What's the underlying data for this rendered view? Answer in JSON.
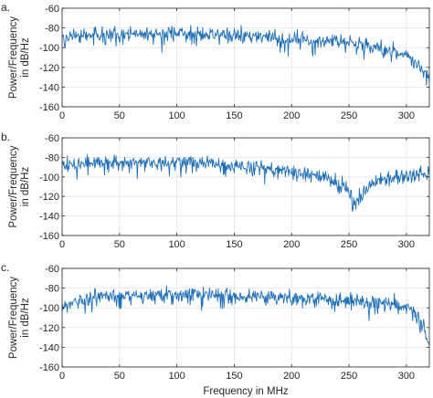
{
  "chart_data": [
    {
      "type": "line",
      "panel_label": "a.",
      "ylabel_lines": [
        "Power/Frequency",
        "in dB/Hz"
      ],
      "xlabel": "",
      "xlim": [
        0,
        320
      ],
      "ylim": [
        -160,
        -60
      ],
      "xticks": [
        0,
        50,
        100,
        150,
        200,
        250,
        300
      ],
      "yticks": [
        -60,
        -80,
        -100,
        -120,
        -140,
        -160
      ],
      "grid": true,
      "series_color": "#1f6fb8",
      "x": [
        0,
        10,
        20,
        30,
        40,
        50,
        60,
        70,
        80,
        90,
        100,
        110,
        120,
        130,
        140,
        150,
        160,
        170,
        180,
        190,
        200,
        210,
        220,
        230,
        240,
        250,
        260,
        270,
        280,
        290,
        300,
        305,
        310,
        315,
        320
      ],
      "y": [
        -90,
        -88,
        -87,
        -87,
        -86,
        -86,
        -86,
        -86,
        -86,
        -86,
        -86,
        -86,
        -86,
        -87,
        -87,
        -88,
        -88,
        -89,
        -89,
        -90,
        -91,
        -92,
        -92,
        -93,
        -94,
        -95,
        -97,
        -99,
        -101,
        -104,
        -108,
        -112,
        -117,
        -124,
        -132
      ]
    },
    {
      "type": "line",
      "panel_label": "b.",
      "ylabel_lines": [
        "Power/Frequency",
        "in dB/Hz"
      ],
      "xlabel": "",
      "xlim": [
        0,
        320
      ],
      "ylim": [
        -160,
        -60
      ],
      "xticks": [
        0,
        50,
        100,
        150,
        200,
        250,
        300
      ],
      "yticks": [
        -60,
        -80,
        -100,
        -120,
        -140,
        -160
      ],
      "grid": true,
      "series_color": "#1f6fb8",
      "x": [
        0,
        10,
        20,
        30,
        40,
        50,
        60,
        70,
        80,
        90,
        100,
        110,
        120,
        130,
        140,
        150,
        160,
        170,
        180,
        190,
        200,
        210,
        220,
        230,
        240,
        245,
        250,
        255,
        260,
        265,
        270,
        280,
        290,
        300,
        310,
        320
      ],
      "y": [
        -88,
        -87,
        -86,
        -85,
        -85,
        -85,
        -85,
        -85,
        -85,
        -85,
        -84,
        -84,
        -85,
        -86,
        -87,
        -88,
        -89,
        -90,
        -91,
        -92,
        -94,
        -96,
        -98,
        -101,
        -106,
        -110,
        -116,
        -127,
        -120,
        -111,
        -106,
        -102,
        -100,
        -99,
        -98,
        -97
      ]
    },
    {
      "type": "line",
      "panel_label": "c.",
      "ylabel_lines": [
        "Power/Frequency",
        "in dB/Hz"
      ],
      "xlabel": "Frequency in MHz",
      "xlim": [
        0,
        320
      ],
      "ylim": [
        -160,
        -60
      ],
      "xticks": [
        0,
        50,
        100,
        150,
        200,
        250,
        300
      ],
      "yticks": [
        -60,
        -80,
        -100,
        -120,
        -140,
        -160
      ],
      "grid": true,
      "series_color": "#1f6fb8",
      "x": [
        0,
        5,
        10,
        20,
        30,
        40,
        50,
        60,
        70,
        80,
        90,
        100,
        110,
        120,
        130,
        140,
        150,
        160,
        170,
        180,
        190,
        200,
        210,
        220,
        230,
        240,
        250,
        260,
        270,
        280,
        290,
        300,
        305,
        310,
        315,
        320
      ],
      "y": [
        -100,
        -96,
        -93,
        -90,
        -89,
        -88,
        -88,
        -87,
        -87,
        -86,
        -86,
        -86,
        -86,
        -86,
        -87,
        -87,
        -87,
        -88,
        -88,
        -88,
        -89,
        -89,
        -90,
        -90,
        -91,
        -92,
        -92,
        -93,
        -94,
        -95,
        -97,
        -100,
        -104,
        -110,
        -120,
        -140
      ]
    }
  ]
}
